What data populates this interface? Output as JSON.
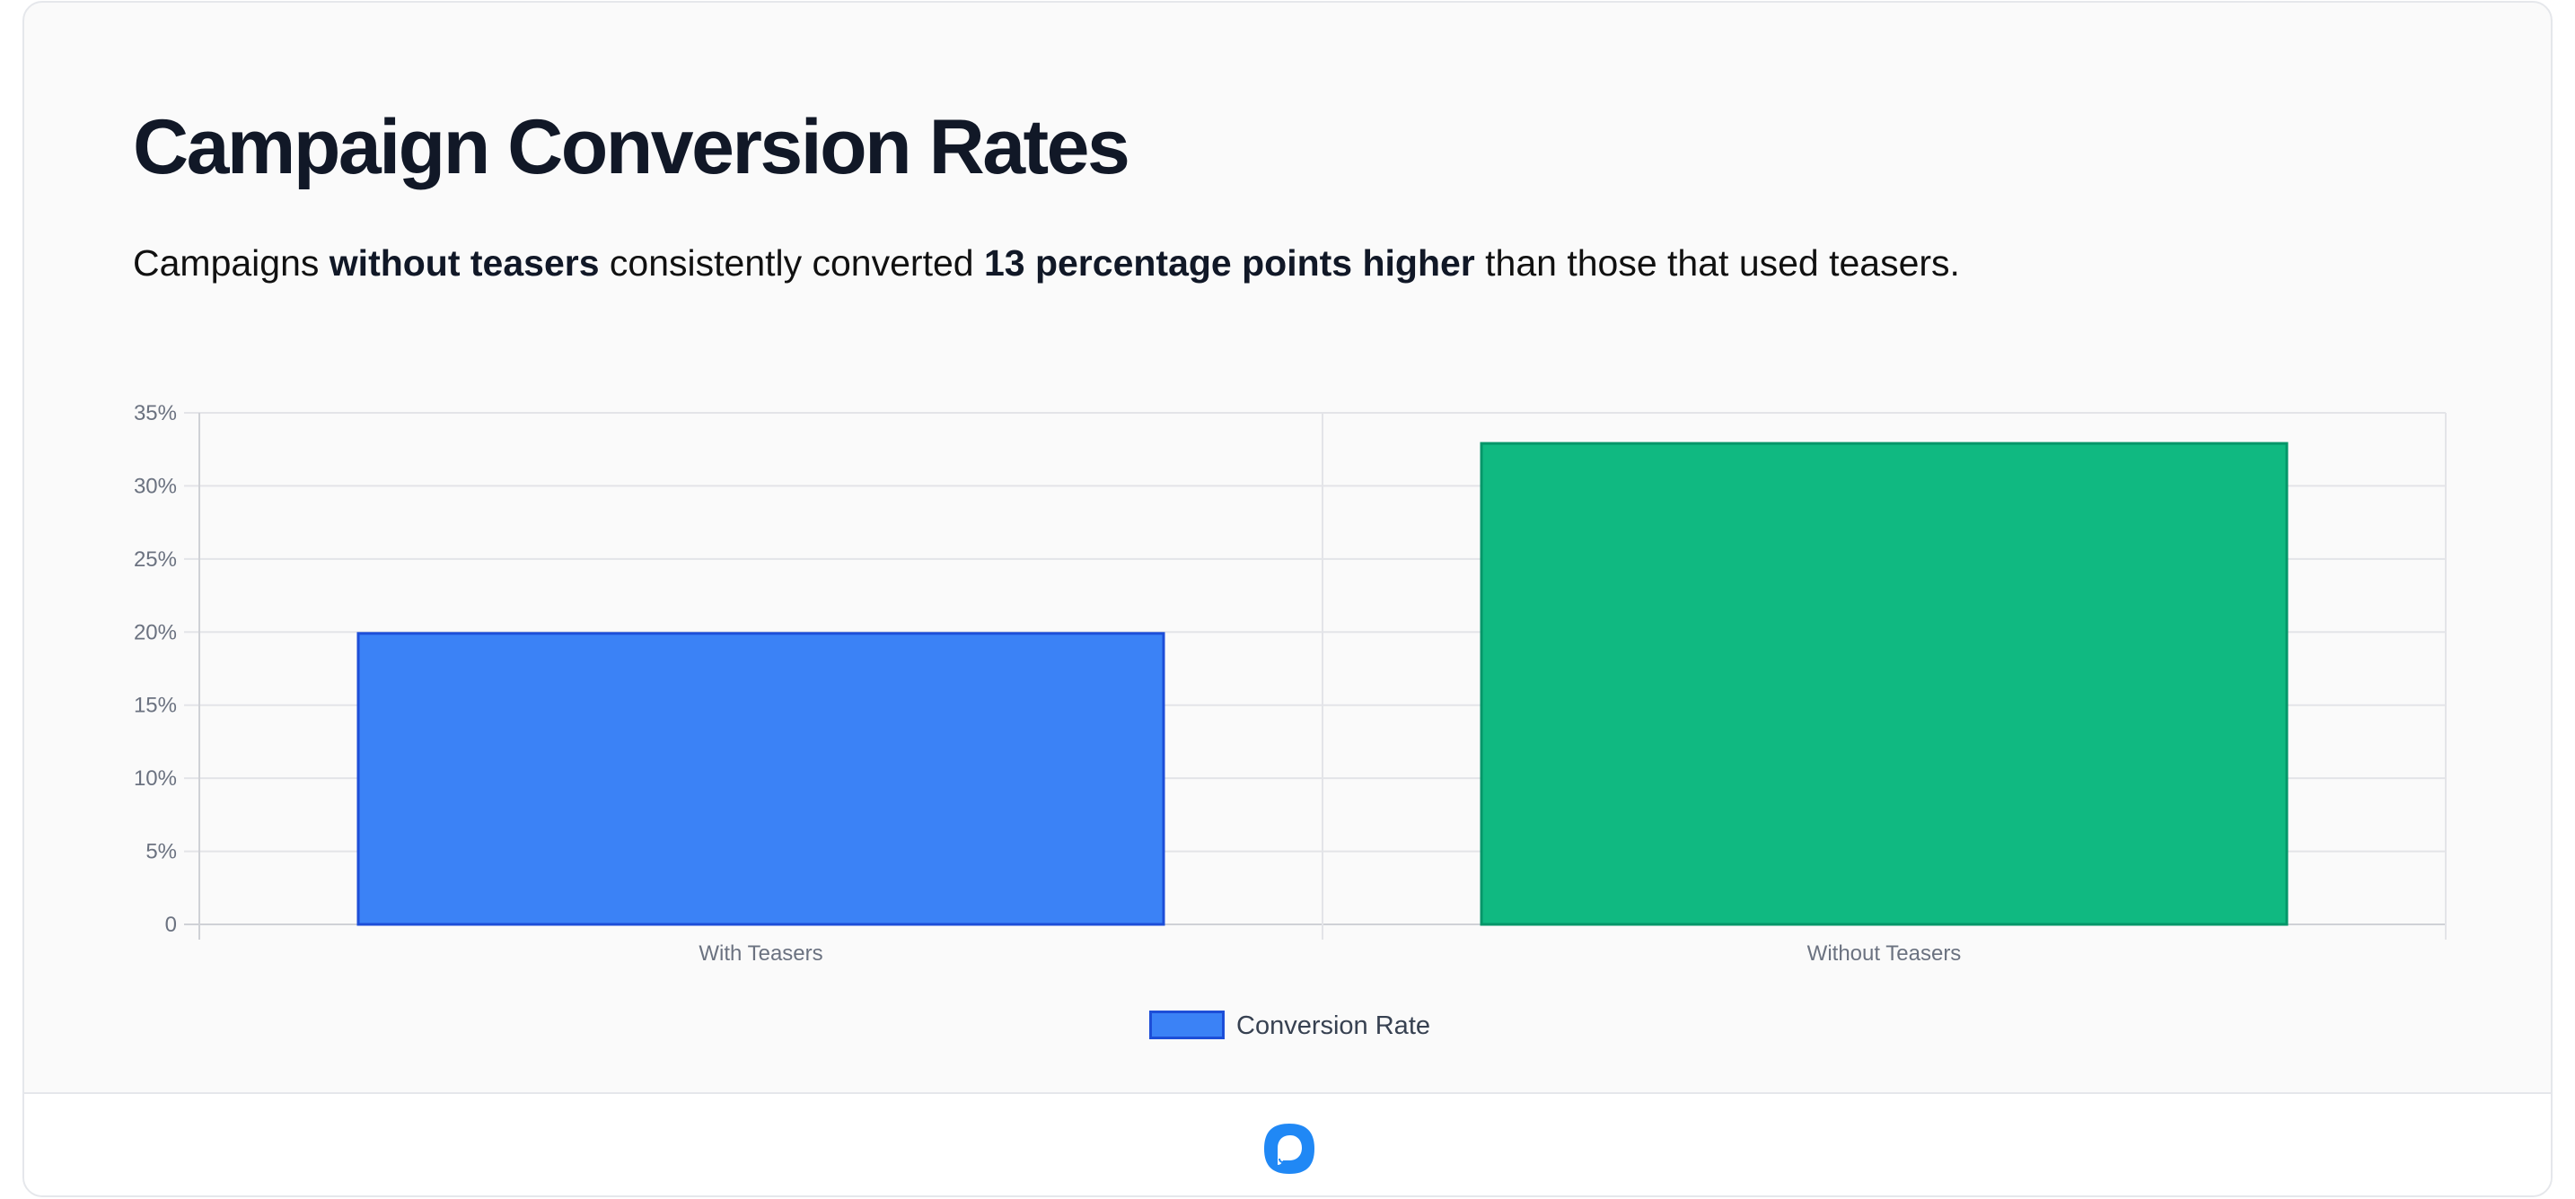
{
  "header": {
    "title": "Campaign Conversion Rates",
    "subtitle_parts": [
      {
        "text": "Campaigns ",
        "bold": false
      },
      {
        "text": "without teasers",
        "bold": true
      },
      {
        "text": " consistently converted ",
        "bold": false
      },
      {
        "text": "13 percentage points higher",
        "bold": true
      },
      {
        "text": " than those that used teasers.",
        "bold": false
      }
    ]
  },
  "chart_data": {
    "type": "bar",
    "title": "Campaign Conversion Rates",
    "categories": [
      "With Teasers",
      "Without Teasers"
    ],
    "series": [
      {
        "name": "Conversion Rate",
        "values": [
          20,
          33
        ],
        "unit": "%"
      }
    ],
    "bar_colors": [
      {
        "fill": "#3b82f6",
        "border": "#1d4ed8"
      },
      {
        "fill": "#10b981",
        "border": "#059669"
      }
    ],
    "xlabel": "",
    "ylabel": "",
    "ylim": [
      0,
      35
    ],
    "yticks": [
      0,
      5,
      10,
      15,
      20,
      25,
      30,
      35
    ],
    "ytick_labels": [
      "0",
      "5%",
      "10%",
      "15%",
      "20%",
      "25%",
      "30%",
      "35%"
    ],
    "grid": true,
    "legend": {
      "position": "bottom",
      "entries": [
        "Conversion Rate"
      ]
    }
  },
  "footer": {
    "logo_icon": "chat-bubble-logo-icon",
    "logo_color": "#2088f5"
  }
}
